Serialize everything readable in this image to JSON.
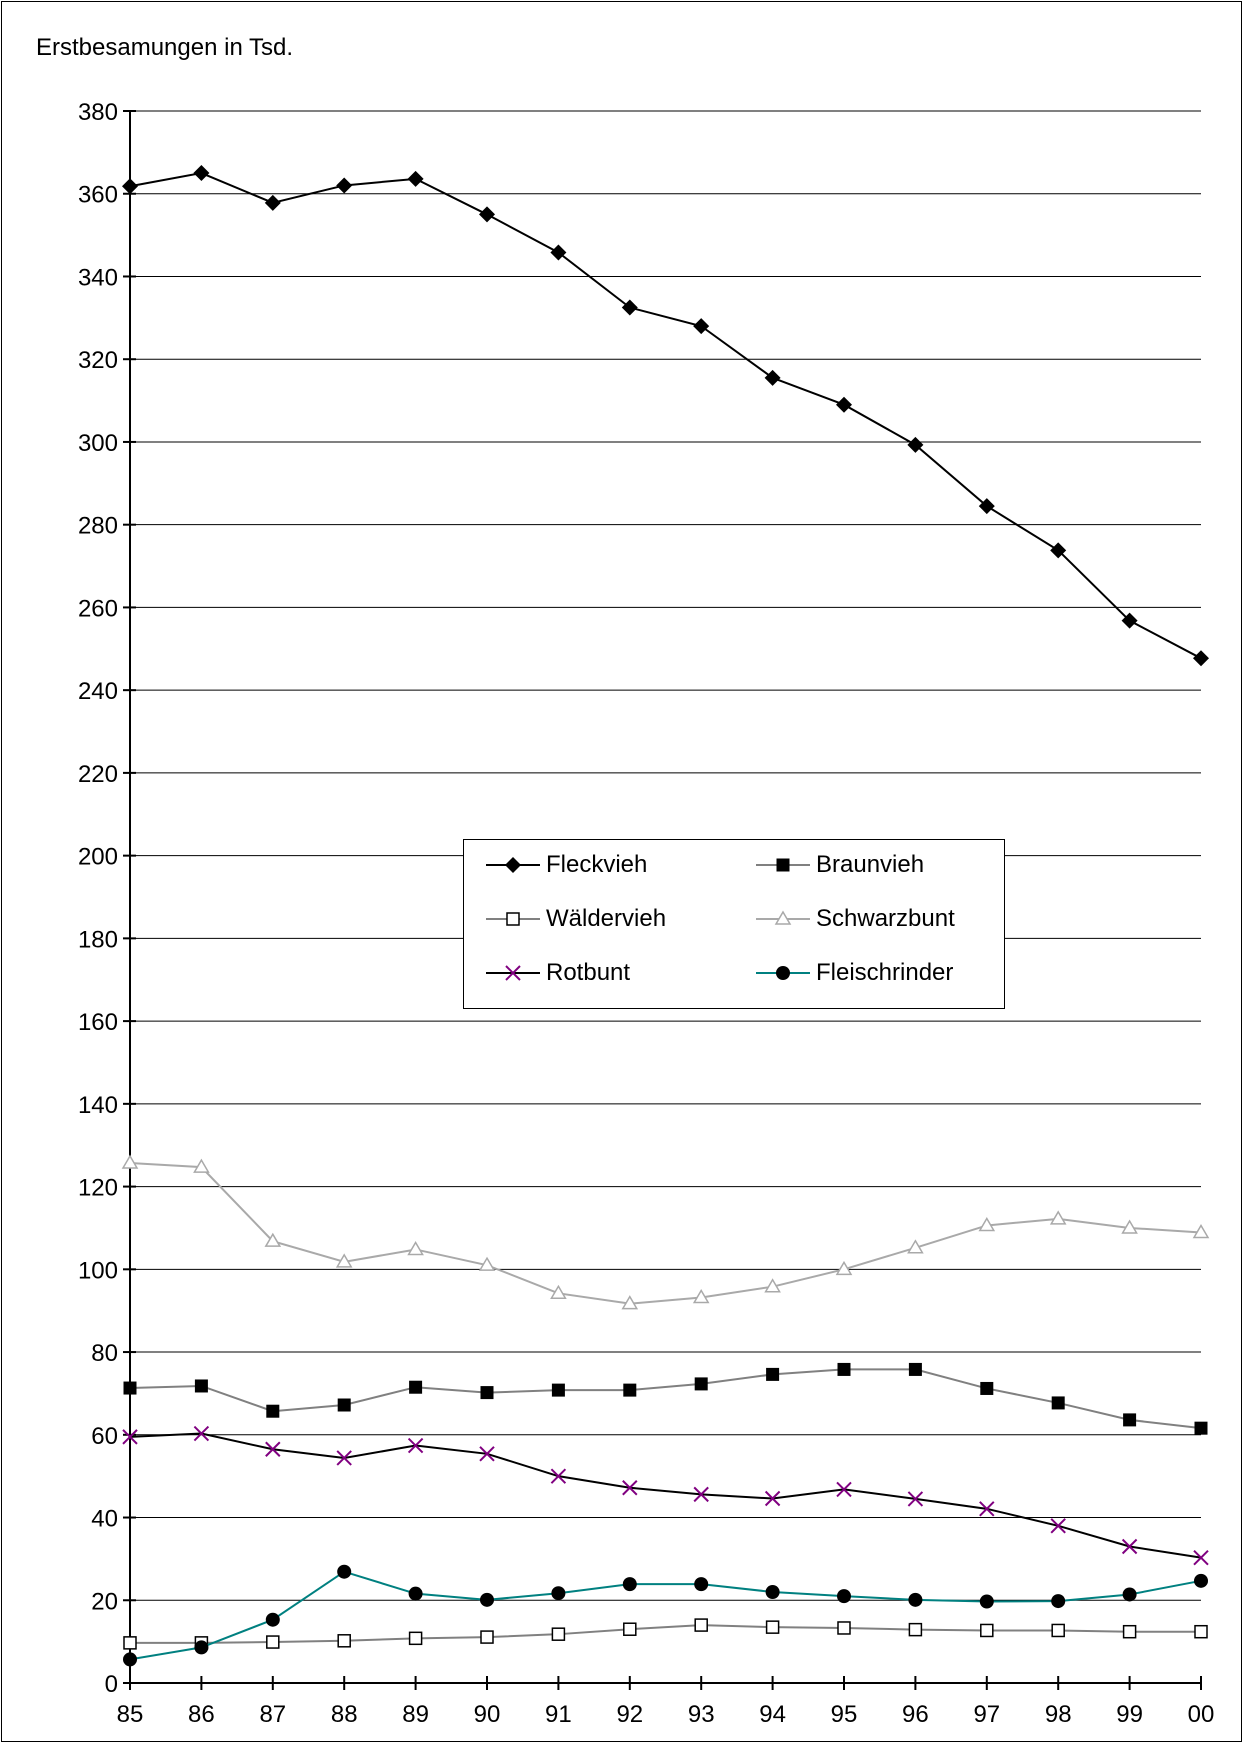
{
  "chart_data": {
    "type": "line",
    "title": "",
    "ylabel": "Erstbesamungen in Tsd.",
    "xlabel": "",
    "categories": [
      "85",
      "86",
      "87",
      "88",
      "89",
      "90",
      "91",
      "92",
      "93",
      "94",
      "95",
      "96",
      "97",
      "98",
      "99",
      "00"
    ],
    "ylim": [
      0,
      380
    ],
    "yticks": [
      0,
      20,
      40,
      60,
      80,
      100,
      120,
      140,
      160,
      180,
      200,
      220,
      240,
      260,
      280,
      300,
      320,
      340,
      360,
      380
    ],
    "grid": true,
    "legend_position": "center",
    "series": [
      {
        "name": "Fleckvieh",
        "color": "#000000",
        "marker": "diamond-filled",
        "values": [
          361.8,
          365,
          357.8,
          362,
          363.6,
          355,
          345.8,
          332.5,
          328,
          315.5,
          309,
          299.3,
          284.5,
          273.8,
          256.8,
          247.7
        ]
      },
      {
        "name": "Braunvieh",
        "color": "#808080",
        "marker": "square-filled",
        "values": [
          71.3,
          71.8,
          65.7,
          67.2,
          71.5,
          70.2,
          70.8,
          70.8,
          72.3,
          74.6,
          75.8,
          75.8,
          71.2,
          67.7,
          63.6,
          61.6
        ]
      },
      {
        "name": "Wäldervieh",
        "color": "#808080",
        "marker": "square-open",
        "values": [
          9.7,
          9.7,
          9.9,
          10.2,
          10.8,
          11.1,
          11.8,
          13,
          14,
          13.5,
          13.3,
          12.9,
          12.7,
          12.7,
          12.4,
          12.4
        ]
      },
      {
        "name": "Schwarzbunt",
        "color": "#a9a9a9",
        "marker": "triangle-open",
        "values": [
          125.7,
          124.7,
          106.8,
          101.8,
          104.8,
          101,
          94.2,
          91.7,
          93.2,
          95.8,
          100,
          105.2,
          110.6,
          112.2,
          110,
          108.9
        ]
      },
      {
        "name": "Rotbunt",
        "color": "#000000",
        "marker": "x",
        "markerColor": "#800080",
        "values": [
          59.5,
          60.3,
          56.5,
          54.4,
          57.4,
          55.4,
          50,
          47.2,
          45.6,
          44.6,
          46.8,
          44.5,
          42.1,
          38,
          33,
          30.3
        ]
      },
      {
        "name": "Fleischrinder",
        "color": "#008080",
        "marker": "circle-filled",
        "values": [
          5.7,
          8.6,
          15.3,
          26.9,
          21.6,
          20.1,
          21.7,
          23.9,
          23.9,
          22,
          21,
          20.1,
          19.7,
          19.8,
          21.4,
          24.7
        ]
      }
    ]
  }
}
